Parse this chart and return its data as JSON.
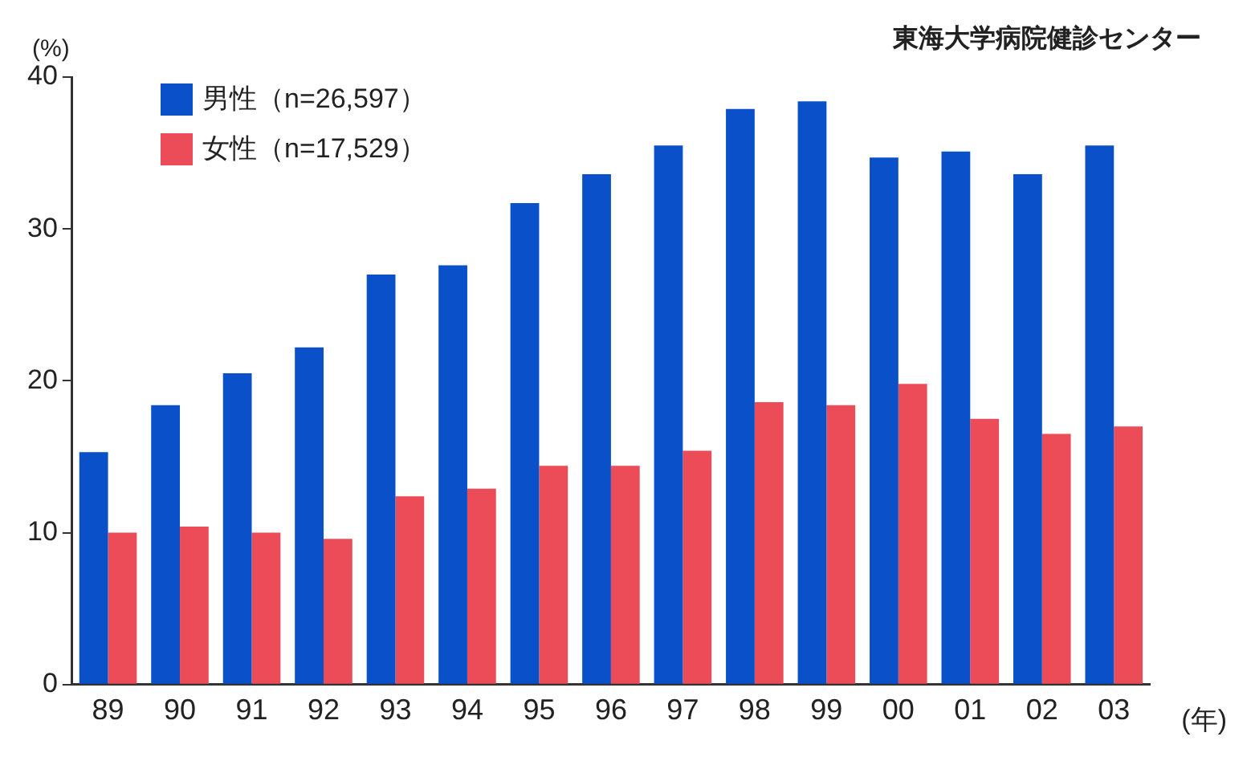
{
  "chart_data": {
    "type": "bar",
    "ylabel": "(%)",
    "xlabel": "(年)",
    "annotations": [
      "東海大学病院健診センター"
    ],
    "categories": [
      "89",
      "90",
      "91",
      "92",
      "93",
      "94",
      "95",
      "96",
      "97",
      "98",
      "99",
      "00",
      "01",
      "02",
      "03"
    ],
    "series": [
      {
        "name": "男性（n=26,597）",
        "color": "#0a50c8",
        "values": [
          15.3,
          18.4,
          20.5,
          22.2,
          27.0,
          27.6,
          31.7,
          33.6,
          35.5,
          37.9,
          38.4,
          34.7,
          35.1,
          33.6,
          35.5
        ]
      },
      {
        "name": "女性（n=17,529）",
        "color": "#ec4c58",
        "values": [
          10.0,
          10.4,
          10.0,
          9.6,
          12.4,
          12.9,
          14.4,
          14.4,
          15.4,
          18.6,
          18.4,
          19.8,
          17.5,
          16.5,
          17.0
        ]
      }
    ],
    "ylim": [
      0,
      40
    ],
    "yticks": [
      0,
      10,
      20,
      30,
      40
    ],
    "grid": false,
    "legend": "top left"
  }
}
